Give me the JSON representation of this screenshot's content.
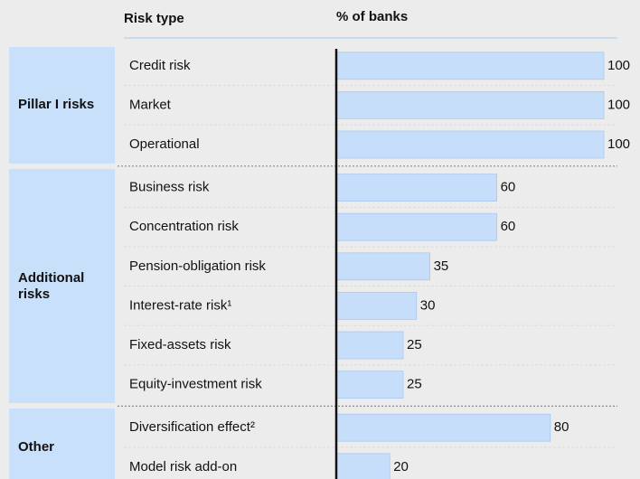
{
  "chart_data": {
    "type": "bar",
    "header": {
      "category": "Risk type",
      "value": "% of banks"
    },
    "xlim": [
      0,
      100
    ],
    "color": "#c7defa",
    "groups": [
      {
        "name": "Pillar I risks",
        "categories": [
          "Credit risk",
          "Market",
          "Operational"
        ],
        "values": [
          100,
          100,
          100
        ]
      },
      {
        "name": "Additional risks",
        "categories": [
          "Business risk",
          "Concentration risk",
          "Pension-obligation risk",
          "Interest-rate risk¹",
          "Fixed-assets risk",
          "Equity-investment risk"
        ],
        "values": [
          60,
          60,
          35,
          30,
          25,
          25
        ]
      },
      {
        "name": "Other",
        "categories": [
          "Diversification effect²",
          "Model risk add-on"
        ],
        "values": [
          80,
          20
        ]
      }
    ]
  }
}
